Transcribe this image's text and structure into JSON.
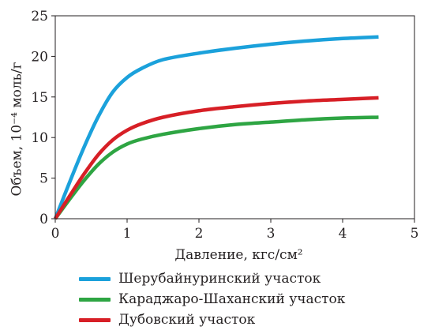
{
  "chart_data": {
    "type": "line",
    "xlabel": "Давление, кгс/см²",
    "ylabel": "Объем, 10⁻⁴ моль/г",
    "xlim": [
      0,
      5
    ],
    "ylim": [
      0,
      25
    ],
    "xticks": [
      0,
      1,
      2,
      3,
      4,
      5
    ],
    "yticks": [
      0,
      5,
      10,
      15,
      20,
      25
    ],
    "grid": false,
    "legend_position": "bottom",
    "series": [
      {
        "name": "Шерубайнуринский участок",
        "color": "#1ba1db",
        "x": [
          0,
          0.2,
          0.4,
          0.6,
          0.8,
          1.0,
          1.2,
          1.5,
          2.0,
          2.5,
          3.0,
          3.5,
          4.0,
          4.5
        ],
        "y": [
          0,
          4.5,
          8.8,
          12.6,
          15.6,
          17.4,
          18.5,
          19.6,
          20.4,
          21.0,
          21.5,
          21.9,
          22.2,
          22.4
        ]
      },
      {
        "name": "Караджаро-Шаханский участок",
        "color": "#2ea543",
        "x": [
          0,
          0.2,
          0.4,
          0.6,
          0.8,
          1.0,
          1.2,
          1.5,
          2.0,
          2.5,
          3.0,
          3.5,
          4.0,
          4.5
        ],
        "y": [
          0,
          2.4,
          4.7,
          6.7,
          8.2,
          9.2,
          9.8,
          10.4,
          11.1,
          11.6,
          11.9,
          12.2,
          12.4,
          12.5
        ]
      },
      {
        "name": "Дубовский участок",
        "color": "#d71f26",
        "x": [
          0,
          0.2,
          0.4,
          0.6,
          0.8,
          1.0,
          1.2,
          1.5,
          2.0,
          2.5,
          3.0,
          3.5,
          4.0,
          4.5
        ],
        "y": [
          0,
          2.8,
          5.5,
          7.9,
          9.7,
          10.9,
          11.7,
          12.5,
          13.3,
          13.8,
          14.2,
          14.5,
          14.7,
          14.9
        ]
      }
    ]
  }
}
